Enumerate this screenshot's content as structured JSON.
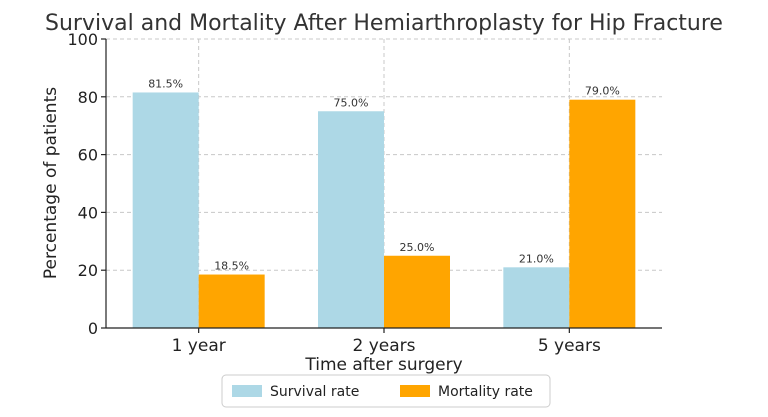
{
  "chart_data": {
    "type": "bar",
    "title": "Survival and Mortality After Hemiarthroplasty for Hip Fracture",
    "xlabel": "Time after surgery",
    "ylabel": "Percentage of patients",
    "categories": [
      "1 year",
      "2 years",
      "5 years"
    ],
    "series": [
      {
        "name": "Survival rate",
        "color": "#add8e6",
        "values": [
          81.5,
          75.0,
          21.0
        ],
        "labels": [
          "81.5%",
          "75.0%",
          "21.0%"
        ]
      },
      {
        "name": "Mortality rate",
        "color": "#ffa500",
        "values": [
          18.5,
          25.0,
          79.0
        ],
        "labels": [
          "18.5%",
          "25.0%",
          "79.0%"
        ]
      }
    ],
    "ylim": [
      0,
      100
    ],
    "yticks": [
      0,
      20,
      40,
      60,
      80,
      100
    ],
    "ytick_labels": [
      "0",
      "20",
      "40",
      "60",
      "80",
      "100"
    ],
    "grid": true,
    "legend_position": "bottom-center"
  }
}
